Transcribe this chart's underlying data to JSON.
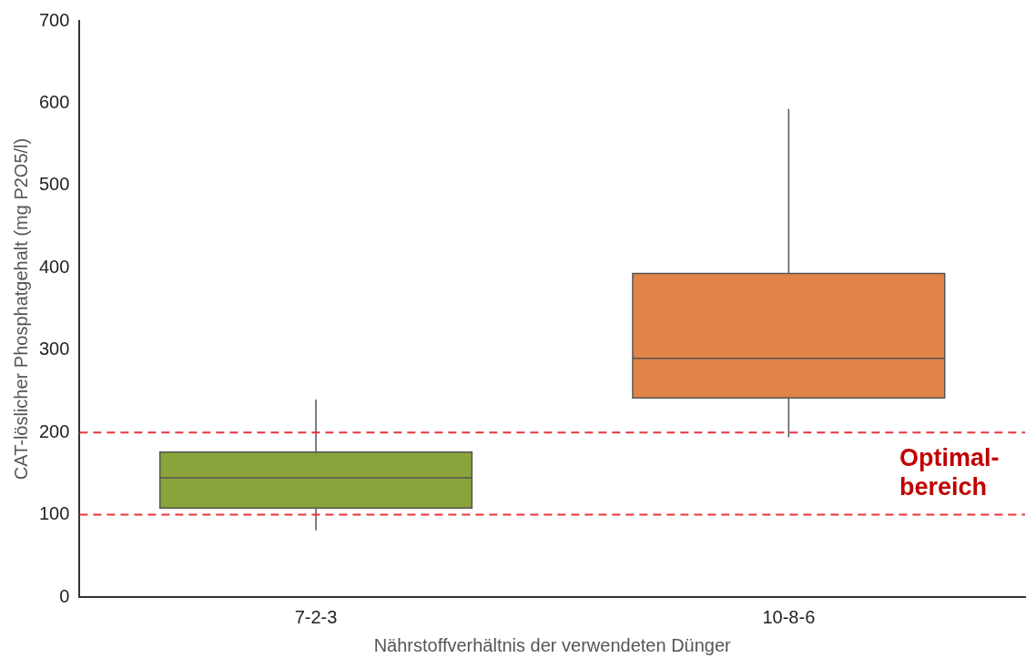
{
  "chart_data": {
    "type": "box",
    "xlabel": "Nährstoffverhältnis der verwendeten Dünger",
    "ylabel": "CAT-löslicher Phosphatgehalt (mg P2O5/l)",
    "categories": [
      "7-2-3",
      "10-8-6"
    ],
    "boxes": [
      {
        "low": 81,
        "q1": 108,
        "median": 145,
        "q3": 176,
        "high": 240
      },
      {
        "low": 194,
        "q1": 242,
        "median": 290,
        "q3": 393,
        "high": 593
      }
    ],
    "colors": [
      "#8aa33a",
      "#e08447"
    ],
    "ylim": [
      0,
      700
    ],
    "yticks": [
      0,
      100,
      200,
      300,
      400,
      500,
      600,
      700
    ],
    "grid": false,
    "legend": false,
    "ref_lines": [
      {
        "axis": "y",
        "value": 200,
        "color": "#e8343a",
        "line_style": "dashed"
      },
      {
        "axis": "y",
        "value": 100,
        "color": "#e8343a",
        "line_style": "dashed"
      }
    ],
    "annotations": [
      "Optimal-\nbereich"
    ]
  }
}
